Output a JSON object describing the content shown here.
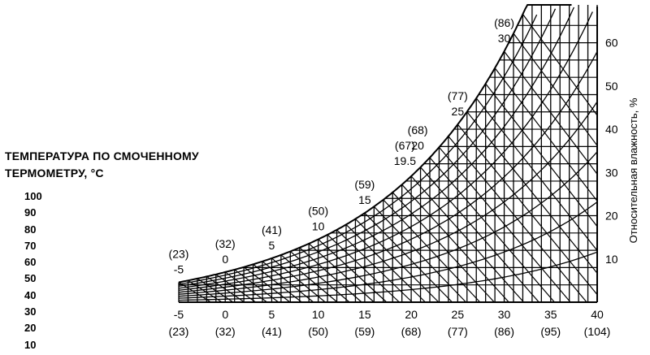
{
  "chart_data": {
    "type": "line",
    "title_lines": [
      "ТЕМПЕРАТУРА ПО СМОЧЕННОМУ",
      "ТЕРМОМЕТРУ, °C"
    ],
    "left_values": [
      "100",
      "90",
      "80",
      "70",
      "60",
      "50",
      "40",
      "30",
      "20",
      "10"
    ],
    "ylabel": "Относительная влажность, %",
    "y_ticks": [
      "10",
      "20",
      "30",
      "40",
      "50",
      "60"
    ],
    "ylim": [
      0,
      68
    ],
    "x_ticks_c": [
      "-5",
      "0",
      "5",
      "10",
      "15",
      "20",
      "25",
      "30",
      "35",
      "40"
    ],
    "x_ticks_f": [
      "(23)",
      "(32)",
      "(41)",
      "(50)",
      "(59)",
      "(68)",
      "(77)",
      "(86)",
      "(95)",
      "(104)"
    ],
    "xlim": [
      -5,
      40
    ],
    "saturation_labels": [
      {
        "c": "-5",
        "f": "(23)"
      },
      {
        "c": "0",
        "f": "(32)"
      },
      {
        "c": "5",
        "f": "(41)"
      },
      {
        "c": "10",
        "f": "(50)"
      },
      {
        "c": "15",
        "f": "(59)"
      },
      {
        "c": "19.5",
        "f": "(67)"
      },
      {
        "c": "20",
        "f": "(68)"
      },
      {
        "c": "25",
        "f": "(77)"
      },
      {
        "c": "30",
        "f": "(86)"
      }
    ],
    "grid": true
  }
}
